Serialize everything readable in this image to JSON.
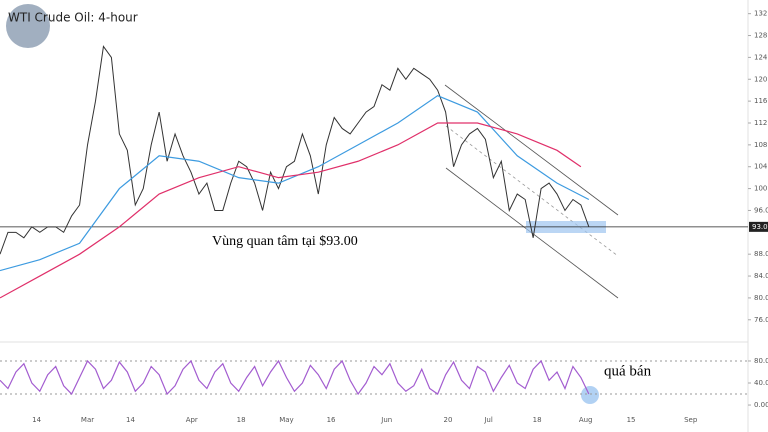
{
  "chart_data": [
    {
      "type": "line",
      "title": "WTI Crude Oil: 4-hour",
      "annotation": "Vùng quan tâm tại $93.00",
      "x": [
        0,
        1,
        2,
        3,
        4,
        5,
        6,
        7,
        8,
        9,
        10,
        11,
        12,
        13,
        14,
        15,
        16,
        17,
        18,
        19,
        20,
        21,
        22,
        23,
        24,
        25,
        26,
        27,
        28,
        29,
        30,
        31,
        32,
        33,
        34,
        35,
        36,
        37,
        38,
        39,
        40,
        41,
        42,
        43,
        44,
        45,
        46,
        47,
        48,
        49,
        50,
        51,
        52,
        53,
        54,
        55,
        56,
        57,
        58,
        59,
        60,
        61,
        62,
        63,
        64,
        65,
        66,
        67,
        68,
        69,
        70,
        71,
        72,
        73,
        74
      ],
      "xlim": [
        0,
        94
      ],
      "ylim": [
        72.3,
        134.5
      ],
      "yticks": [
        {
          "value": 132,
          "label": "132.00"
        },
        {
          "value": 128,
          "label": "128.00"
        },
        {
          "value": 124,
          "label": "124.00"
        },
        {
          "value": 120,
          "label": "120.00"
        },
        {
          "value": 116,
          "label": "116.00"
        },
        {
          "value": 112,
          "label": "112.00"
        },
        {
          "value": 108,
          "label": "108.00"
        },
        {
          "value": 104,
          "label": "104.00"
        },
        {
          "value": 100,
          "label": "100.00"
        },
        {
          "value": 96,
          "label": "96.00"
        },
        {
          "value": 88,
          "label": "88.00"
        },
        {
          "value": 84,
          "label": "84.00"
        },
        {
          "value": 80,
          "label": "80.00"
        },
        {
          "value": 76,
          "label": "76.00"
        }
      ],
      "price_line": {
        "value": 93,
        "label": "93.00"
      },
      "series": [
        {
          "color": "#333333",
          "values": [
            88,
            92,
            92,
            91,
            93,
            92,
            93,
            93,
            92,
            95,
            97,
            108,
            116,
            126,
            124,
            110,
            107,
            97,
            100,
            108,
            114,
            105,
            110,
            106,
            103,
            99,
            101,
            96,
            96,
            101,
            105,
            104,
            101,
            96,
            103,
            100,
            104,
            105,
            110,
            106,
            99,
            108,
            113,
            111,
            110,
            112,
            114,
            115,
            119,
            118,
            122,
            120,
            122,
            121,
            120,
            118,
            114,
            104,
            108,
            110,
            111,
            109,
            102,
            105,
            96,
            99,
            98,
            91,
            100,
            101,
            99,
            96,
            98,
            97,
            93
          ]
        },
        {
          "color": "#3d9be0",
          "x": [
            0,
            5,
            10,
            15,
            20,
            25,
            30,
            35,
            40,
            45,
            50,
            55,
            60,
            65,
            70,
            74
          ],
          "values": [
            85,
            87,
            90,
            100,
            106,
            105,
            102,
            101,
            104,
            108,
            112,
            117,
            114,
            106,
            101,
            98
          ]
        },
        {
          "color": "#e0306a",
          "x": [
            0,
            5,
            10,
            15,
            20,
            25,
            30,
            35,
            40,
            45,
            50,
            55,
            60,
            65,
            70,
            73
          ],
          "values": [
            80,
            84,
            88,
            93,
            99,
            102,
            104,
            102,
            103,
            105,
            108,
            112,
            112,
            110,
            107,
            104
          ]
        }
      ]
    },
    {
      "type": "line",
      "annotation": "quá bán",
      "xlim": [
        0,
        94
      ],
      "ylim": [
        -9,
        109
      ],
      "yticks": [
        {
          "value": 80,
          "label": "80.00"
        },
        {
          "value": 40,
          "label": "40.00"
        },
        {
          "value": 0,
          "label": "0.00"
        }
      ],
      "bands": [
        20,
        80
      ],
      "xticks": [
        {
          "value": 4.6,
          "label": "14"
        },
        {
          "value": 11,
          "label": "Mar"
        },
        {
          "value": 16.4,
          "label": "14"
        },
        {
          "value": 24.1,
          "label": "Apr"
        },
        {
          "value": 30.3,
          "label": "18"
        },
        {
          "value": 36,
          "label": "May"
        },
        {
          "value": 41.6,
          "label": "16"
        },
        {
          "value": 48.6,
          "label": "Jun"
        },
        {
          "value": 56.3,
          "label": "20"
        },
        {
          "value": 61.4,
          "label": "Jul"
        },
        {
          "value": 67.5,
          "label": "18"
        },
        {
          "value": 73.6,
          "label": "Aug"
        },
        {
          "value": 79.3,
          "label": "15"
        },
        {
          "value": 86.8,
          "label": "Sep"
        }
      ],
      "series": [
        {
          "color": "#a35dd0",
          "values": [
            45,
            30,
            60,
            75,
            40,
            25,
            55,
            70,
            35,
            20,
            50,
            80,
            65,
            30,
            45,
            78,
            60,
            25,
            40,
            70,
            55,
            20,
            35,
            65,
            80,
            45,
            30,
            60,
            75,
            40,
            25,
            50,
            70,
            35,
            60,
            80,
            50,
            25,
            40,
            72,
            55,
            30,
            65,
            80,
            45,
            20,
            40,
            70,
            55,
            75,
            40,
            25,
            35,
            65,
            30,
            20,
            55,
            78,
            45,
            30,
            70,
            60,
            25,
            50,
            72,
            40,
            30,
            65,
            80,
            45,
            60,
            30,
            70,
            50,
            20
          ]
        }
      ]
    }
  ]
}
